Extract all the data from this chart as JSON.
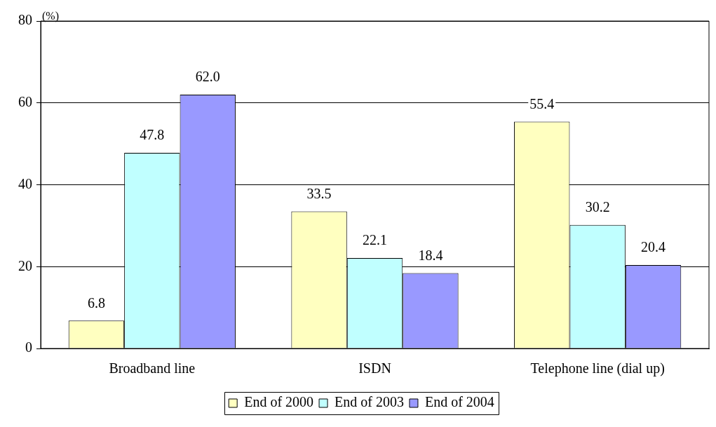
{
  "chart_data": {
    "type": "bar",
    "ylabel": "(%)",
    "categories": [
      "Broadband line",
      "ISDN",
      "Telephone line (dial up)"
    ],
    "series": [
      {
        "name": "End of 2000",
        "color": "#ffffc0",
        "values": [
          6.8,
          33.5,
          55.4
        ],
        "value_labels": [
          "6.8",
          "33.5",
          "55.4"
        ]
      },
      {
        "name": "End of 2003",
        "color": "#c0ffff",
        "values": [
          47.8,
          22.1,
          30.2
        ],
        "value_labels": [
          "47.8",
          "22.1",
          "30.2"
        ]
      },
      {
        "name": "End of 2004",
        "color": "#9999ff",
        "values": [
          62.0,
          18.4,
          20.4
        ],
        "value_labels": [
          "62.0",
          "18.4",
          "20.4"
        ]
      }
    ],
    "ylim": [
      0,
      80
    ],
    "yticks": [
      0,
      20,
      40,
      60,
      80
    ],
    "grid": "y",
    "legend": "bottom"
  }
}
